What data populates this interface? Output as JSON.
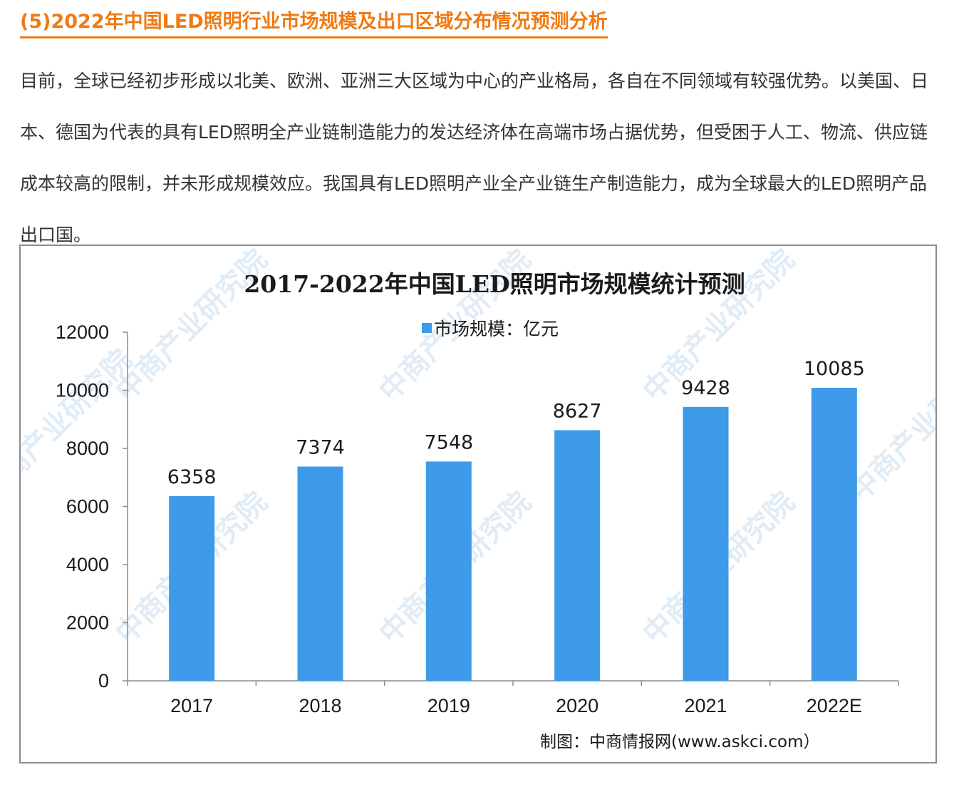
{
  "heading": "(5)2022年中国LED照明行业市场规模及出口区域分布情况预测分析",
  "paragraph": "目前，全球已经初步形成以北美、欧洲、亚洲三大区域为中心的产业格局，各自在不同领域有较强优势。以美国、日本、德国为代表的具有LED照明全产业链制造能力的发达经济体在高端市场占据优势，但受困于人工、物流、供应链成本较高的限制，并未形成规模效应。我国具有LED照明产业全产业链生产制造能力，成为全球最大的LED照明产品出口国。",
  "watermark": "中商产业研究院",
  "chart_data": {
    "type": "bar",
    "title": "2017-2022年中国LED照明市场规模统计预测",
    "categories": [
      "2017",
      "2018",
      "2019",
      "2020",
      "2021",
      "2022E"
    ],
    "series": [
      {
        "name": "市场规模：亿元",
        "values": [
          6358,
          7374,
          7548,
          8627,
          9428,
          10085
        ],
        "color": "#3d9be9"
      }
    ],
    "ylim": [
      0,
      12000
    ],
    "yticks": [
      0,
      2000,
      4000,
      6000,
      8000,
      10000,
      12000
    ],
    "xlabel": "",
    "ylabel": "",
    "grid": false,
    "legend_position": "top-center",
    "data_labels": true,
    "source": "制图：中商情报网(www.askci.com）"
  },
  "colors": {
    "heading": "#f07a13",
    "bar": "#3d9be9",
    "text": "#333333"
  }
}
